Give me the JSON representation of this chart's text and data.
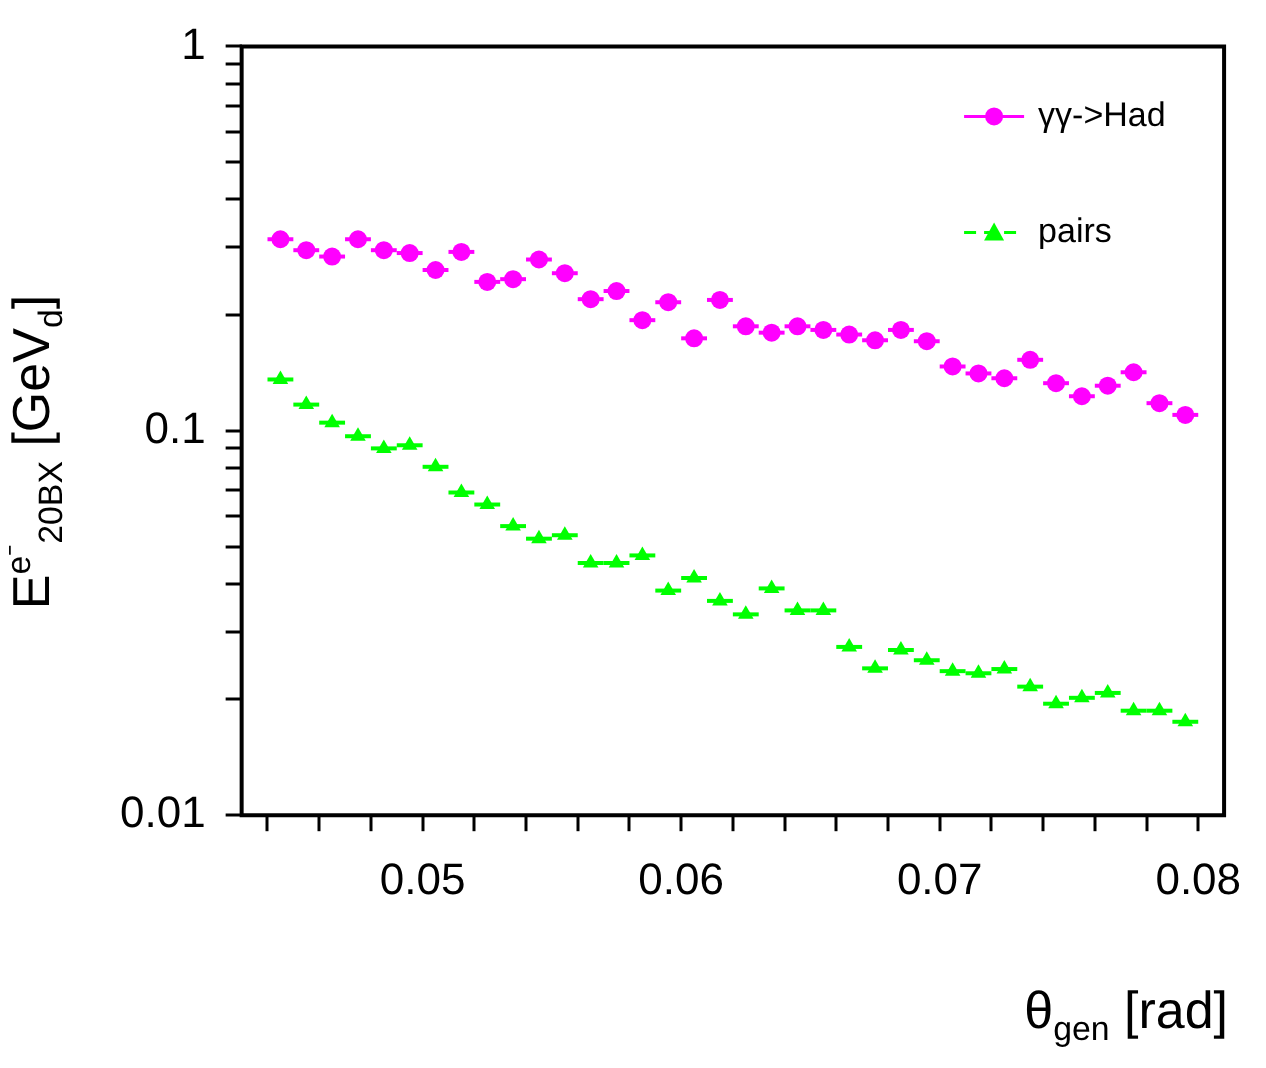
{
  "chart_data": {
    "type": "scatter",
    "xlabel": "θ$_{gen}$ [rad]",
    "ylabel": "E$^{e⁻}$$_{20BX}$ [GeV$_{d}$]",
    "x": [
      0.0445,
      0.0455,
      0.0465,
      0.0475,
      0.0485,
      0.0495,
      0.0505,
      0.0515,
      0.0525,
      0.0535,
      0.0545,
      0.0555,
      0.0565,
      0.0575,
      0.0585,
      0.0595,
      0.0605,
      0.0615,
      0.0625,
      0.0635,
      0.0645,
      0.0655,
      0.0665,
      0.0675,
      0.0685,
      0.0695,
      0.0705,
      0.0715,
      0.0725,
      0.0735,
      0.0745,
      0.0755,
      0.0765,
      0.0775,
      0.0785,
      0.0795
    ],
    "series": [
      {
        "name": "γγ->Had",
        "color": "#ff00ff",
        "marker": "circle",
        "line_style": "solid",
        "values": [
          0.315,
          0.295,
          0.284,
          0.315,
          0.295,
          0.29,
          0.262,
          0.292,
          0.244,
          0.248,
          0.279,
          0.257,
          0.22,
          0.231,
          0.194,
          0.216,
          0.174,
          0.219,
          0.187,
          0.18,
          0.187,
          0.183,
          0.178,
          0.172,
          0.183,
          0.171,
          0.147,
          0.141,
          0.137,
          0.153,
          0.133,
          0.123,
          0.131,
          0.142,
          0.118,
          0.11
        ],
        "xerrors": [
          0.0005,
          0.0005,
          0.0005,
          0.0005,
          0.0005,
          0.0005,
          0.0005,
          0.0005,
          0.0005,
          0.0005,
          0.0005,
          0.0005,
          0.0005,
          0.0005,
          0.0005,
          0.0005,
          0.0005,
          0.0005,
          0.0005,
          0.0005,
          0.0005,
          0.0005,
          0.0005,
          0.0005,
          0.0005,
          0.0005,
          0.0005,
          0.0005,
          0.0005,
          0.0005,
          0.0005,
          0.0005,
          0.0005,
          0.0005,
          0.0005,
          0.0005
        ]
      },
      {
        "name": "pairs",
        "color": "#00ff00",
        "marker": "triangle",
        "line_style": "dashed",
        "values": [
          0.136,
          0.117,
          0.105,
          0.0968,
          0.09,
          0.0917,
          0.0806,
          0.0691,
          0.0643,
          0.0565,
          0.0524,
          0.0535,
          0.0453,
          0.0453,
          0.0474,
          0.0384,
          0.0414,
          0.0361,
          0.0333,
          0.0389,
          0.0341,
          0.0341,
          0.0274,
          0.0241,
          0.0269,
          0.0253,
          0.0237,
          0.0234,
          0.024,
          0.0216,
          0.0195,
          0.0202,
          0.0208,
          0.0187,
          0.0187,
          0.0175
        ],
        "xerrors": [
          0.0005,
          0.0005,
          0.0005,
          0.0005,
          0.0005,
          0.0005,
          0.0005,
          0.0005,
          0.0005,
          0.0005,
          0.0005,
          0.0005,
          0.0005,
          0.0005,
          0.0005,
          0.0005,
          0.0005,
          0.0005,
          0.0005,
          0.0005,
          0.0005,
          0.0005,
          0.0005,
          0.0005,
          0.0005,
          0.0005,
          0.0005,
          0.0005,
          0.0005,
          0.0005,
          0.0005,
          0.0005,
          0.0005,
          0.0005,
          0.0005,
          0.0005
        ]
      }
    ],
    "xlim": [
      0.043,
      0.081
    ],
    "xticks": [
      {
        "value": 0.044,
        "label": null
      },
      {
        "value": 0.046,
        "label": null
      },
      {
        "value": 0.048,
        "label": null
      },
      0.05,
      {
        "value": 0.052,
        "label": null
      },
      {
        "value": 0.054,
        "label": null
      },
      {
        "value": 0.056,
        "label": null
      },
      {
        "value": 0.058,
        "label": null
      },
      0.06,
      {
        "value": 0.062,
        "label": null
      },
      {
        "value": 0.064,
        "label": null
      },
      {
        "value": 0.066,
        "label": null
      },
      {
        "value": 0.068,
        "label": null
      },
      0.07,
      {
        "value": 0.072,
        "label": null
      },
      {
        "value": 0.074,
        "label": null
      },
      {
        "value": 0.076,
        "label": null
      },
      {
        "value": 0.078,
        "label": null
      },
      0.08
    ],
    "ylim": [
      0.01,
      1
    ],
    "yticks": [
      0.01,
      {
        "value": 0.02,
        "label": null
      },
      {
        "value": 0.03,
        "label": null
      },
      {
        "value": 0.04,
        "label": null
      },
      {
        "value": 0.05,
        "label": null
      },
      {
        "value": 0.06,
        "label": null
      },
      {
        "value": 0.07,
        "label": null
      },
      {
        "value": 0.08,
        "label": null
      },
      {
        "value": 0.09,
        "label": null
      },
      0.1,
      {
        "value": 0.2,
        "label": null
      },
      {
        "value": 0.3,
        "label": null
      },
      {
        "value": 0.4,
        "label": null
      },
      {
        "value": 0.5,
        "label": null
      },
      {
        "value": 0.6,
        "label": null
      },
      {
        "value": 0.7,
        "label": null
      },
      {
        "value": 0.8,
        "label": null
      },
      {
        "value": 0.9,
        "label": null
      },
      1
    ],
    "log": true,
    "grid": false,
    "legend": "top right"
  }
}
